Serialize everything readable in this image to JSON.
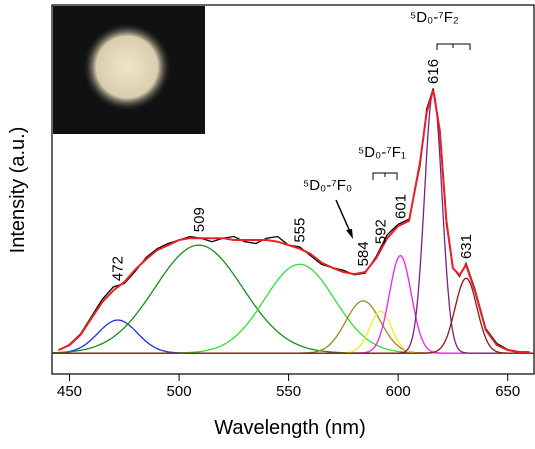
{
  "chart_data": {
    "type": "line",
    "xlabel": "Wavelength (nm)",
    "ylabel": "Intensity (a.u.)",
    "xlim": [
      442,
      662
    ],
    "ylim": [
      -6,
      100
    ],
    "xticks": [
      450,
      500,
      550,
      600,
      650
    ],
    "x": [
      445,
      450,
      455,
      460,
      465,
      470,
      475,
      480,
      485,
      490,
      495,
      500,
      505,
      510,
      515,
      520,
      525,
      530,
      535,
      540,
      545,
      550,
      555,
      560,
      565,
      570,
      575,
      580,
      585,
      590,
      595,
      600,
      605,
      610,
      613,
      616,
      619,
      622,
      625,
      628,
      631,
      635,
      640,
      645,
      650,
      655,
      660
    ],
    "series": [
      {
        "color": "#000000",
        "values": [
          0.8,
          2.5,
          5.5,
          10.5,
          15.5,
          19,
          20,
          23.5,
          27.5,
          30,
          31.5,
          32.5,
          33.5,
          33,
          32,
          33,
          33.5,
          32,
          31.5,
          33,
          33.5,
          31,
          30.5,
          28,
          25.5,
          24.5,
          23.8,
          22.5,
          23,
          27.8,
          34,
          37,
          38.5,
          54,
          70,
          76,
          63,
          37,
          24.5,
          22,
          25.8,
          18.5,
          7,
          2.8,
          1,
          0.4,
          0.3
        ]
      },
      {
        "color": "#e8202a",
        "values": [
          0.9,
          2.3,
          5.2,
          10,
          14.7,
          18,
          20.4,
          24,
          27,
          29.6,
          31,
          32.5,
          33,
          33,
          33,
          33,
          32.5,
          32.5,
          32.5,
          32.5,
          32,
          31,
          30,
          28.5,
          26,
          24.5,
          23.3,
          22.7,
          23.3,
          27.3,
          33,
          36.5,
          38,
          55,
          69,
          75.6,
          64,
          38,
          24.4,
          22.4,
          25.3,
          18,
          6.6,
          2.3,
          0.9,
          0.3,
          0.3
        ]
      }
    ],
    "components": [
      {
        "color": "#2030e0",
        "center": 472,
        "height": 9.5,
        "sigma": 9
      },
      {
        "color": "#1f8a1f",
        "center": 509,
        "height": 31,
        "sigma": 20
      },
      {
        "color": "#33e033",
        "center": 555,
        "height": 25.5,
        "sigma": 16
      },
      {
        "color": "#9a8a20",
        "center": 584,
        "height": 15,
        "sigma": 8
      },
      {
        "color": "#f0f020",
        "center": 592,
        "height": 12,
        "sigma": 5
      },
      {
        "color": "#f020f0",
        "center": 601,
        "height": 28,
        "sigma": 5
      },
      {
        "color": "#7a207a",
        "center": 616,
        "height": 75,
        "sigma": 4
      },
      {
        "color": "#8a1818",
        "center": 631,
        "height": 21.5,
        "sigma": 5
      }
    ],
    "annotations": [
      "⁵D₀-⁷F₂",
      "⁵D₀-⁷F₁",
      "⁵D₀-⁷F₀"
    ]
  }
}
